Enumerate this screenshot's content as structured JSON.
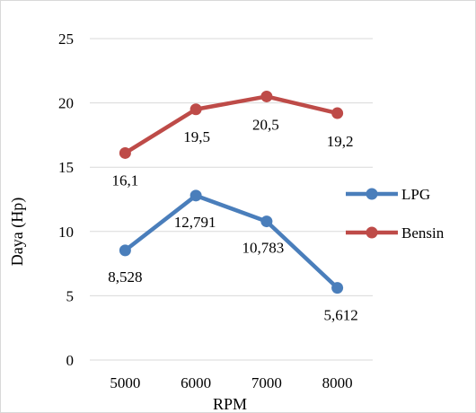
{
  "chart_data": {
    "type": "line",
    "title": "",
    "xlabel": "RPM",
    "ylabel": "Daya (Hp)",
    "categories": [
      "5000",
      "6000",
      "7000",
      "8000"
    ],
    "ylim": [
      0,
      25
    ],
    "yticks": [
      0,
      5,
      10,
      15,
      20,
      25
    ],
    "grid": true,
    "legend_position": "right",
    "series": [
      {
        "name": "LPG",
        "color": "#4a7ebb",
        "values": [
          8.528,
          12.791,
          10.783,
          5.612
        ],
        "labels": [
          "8,528",
          "12,791",
          "10,783",
          "5,612"
        ]
      },
      {
        "name": "Bensin",
        "color": "#be4b48",
        "values": [
          16.1,
          19.5,
          20.5,
          19.2
        ],
        "labels": [
          "16,1",
          "19,5",
          "20,5",
          "19,2"
        ]
      }
    ]
  }
}
